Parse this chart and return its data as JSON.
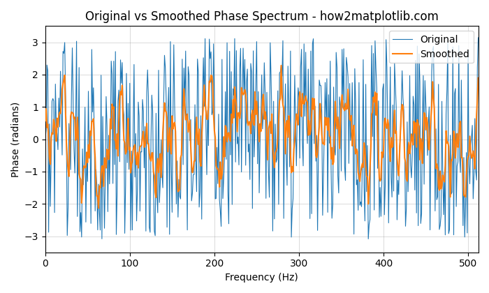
{
  "title": "Original vs Smoothed Phase Spectrum - how2matplotlib.com",
  "xlabel": "Frequency (Hz)",
  "ylabel": "Phase (radians)",
  "xlim": [
    0,
    512
  ],
  "ylim": [
    -3.5,
    3.5
  ],
  "xticks": [
    0,
    100,
    200,
    300,
    400,
    500
  ],
  "yticks": [
    -3,
    -2,
    -1,
    0,
    1,
    2,
    3
  ],
  "original_color": "#1f77b4",
  "smoothed_color": "#ff7f0e",
  "original_label": "Original",
  "smoothed_label": "Smoothed",
  "linewidth_original": 0.8,
  "linewidth_smoothed": 1.5,
  "grid": true,
  "legend_loc": "upper right",
  "seed": 42,
  "n_points": 1024,
  "smooth_window": 5,
  "figsize": [
    7.0,
    4.2
  ],
  "dpi": 100
}
